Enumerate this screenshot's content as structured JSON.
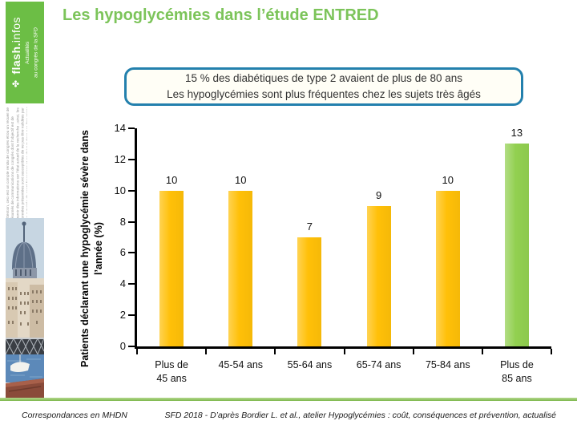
{
  "page": {
    "title": "Les hypoglycémies dans l’étude ENTRED"
  },
  "sidebar": {
    "logo_icon_glyph": "✤",
    "logo_icon_name": "flash-flower-icon",
    "logo_bold": "flash.",
    "logo_light": "infos",
    "tagline_line1": "Actualités",
    "tagline_line2": "au congrès de la SFD",
    "disclaimer": "Attention, ceci est un compte rendu de congrès et/ou un recueil de résumés de communications de congrès dont l’objectif est de fournir des informations sur l’état actuel de la recherche ; ainsi, les données présentées sont susceptibles de ne pas être validées par les autorités de santé françaises et ne doivent donc pas être mises en pratique."
  },
  "callout": {
    "line1": "15 % des diabétiques de type 2 avaient de plus de 80 ans",
    "line2": "Les hypoglycémies sont plus fréquentes chez les sujets très âgés"
  },
  "chart_data": {
    "type": "bar",
    "categories": [
      "Plus de\n45 ans",
      "45-54 ans",
      "55-64 ans",
      "65-74 ans",
      "75-84 ans",
      "Plus de\n85 ans"
    ],
    "values": [
      10,
      10,
      7,
      9,
      10,
      13
    ],
    "bar_colors": [
      "#FFC008",
      "#FFC008",
      "#FFC008",
      "#FFC008",
      "#FFC008",
      "#92D050"
    ],
    "title": "",
    "xlabel": "",
    "ylabel": "Patients déclarant une hypoglycémie sévère\ndans l’année (%)",
    "ylim": [
      0,
      14
    ],
    "yticks": [
      0,
      2,
      4,
      6,
      8,
      10,
      12,
      14
    ],
    "grid": false,
    "data_labels": true,
    "legend": "none"
  },
  "footer": {
    "left": "Correspondances en MHDN",
    "right": "SFD 2018 - D’après Bordier L. et al., atelier Hypoglycémies : coût, conséquences et prévention, actualisé"
  },
  "colors": {
    "title_green": "#7CC45A",
    "sidebar_green": "#6CBE45",
    "bar_gold": "#FFC008",
    "bar_green": "#92D050",
    "callout_border": "#2380AD",
    "bottom_line_green": "#8FC25B"
  }
}
